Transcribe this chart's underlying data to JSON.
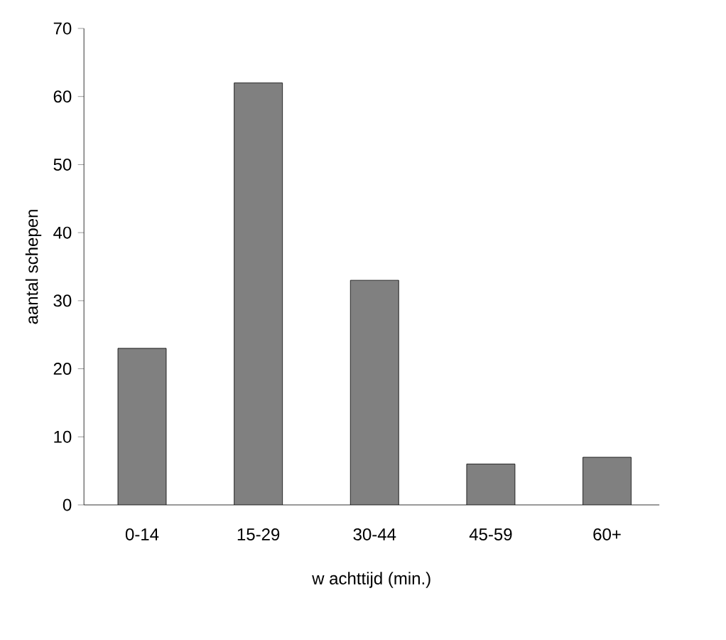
{
  "chart_data": {
    "type": "bar",
    "xlabel": "w achttijd (min.)",
    "ylabel": "aantal schepen",
    "categories": [
      "0-14",
      "15-29",
      "30-44",
      "45-59",
      "60+"
    ],
    "values": [
      23,
      62,
      33,
      6,
      7
    ],
    "color": "#808080",
    "ylim": [
      0,
      70
    ],
    "yticks": [
      0,
      10,
      20,
      30,
      40,
      50,
      60,
      70
    ]
  }
}
